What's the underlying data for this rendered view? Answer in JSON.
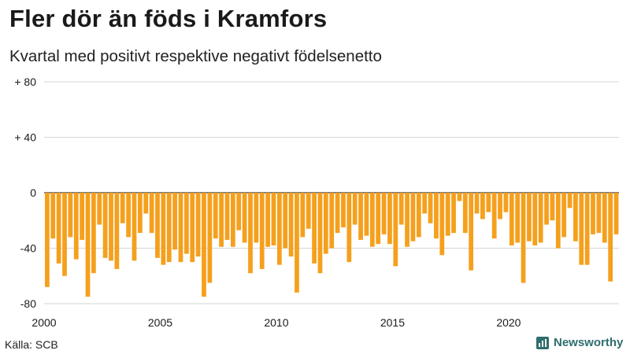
{
  "chart_data": {
    "type": "bar",
    "title": "Fler dör än föds i Kramfors",
    "subtitle": "Kvartal med positivt respektive negativt födelsenetto",
    "source": "Källa: SCB",
    "brand": "Newsworthy",
    "xlabel": "",
    "ylabel": "",
    "ylim": [
      -80,
      80
    ],
    "yticks": [
      80,
      40,
      0,
      -40,
      -80
    ],
    "ytick_labels": [
      "+ 80",
      "+ 40",
      "0",
      "-40",
      "-80"
    ],
    "xticks": [
      2000,
      2005,
      2010,
      2015,
      2020
    ],
    "bar_color": "#f5a01d",
    "start_year": 2000,
    "quarters_per_year": 4,
    "values": [
      -68,
      -33,
      -51,
      -60,
      -32,
      -48,
      -34,
      -75,
      -58,
      -23,
      -47,
      -49,
      -55,
      -22,
      -32,
      -49,
      -29,
      -15,
      -29,
      -47,
      -52,
      -50,
      -41,
      -50,
      -44,
      -50,
      -46,
      -75,
      -65,
      -33,
      -39,
      -34,
      -39,
      -27,
      -36,
      -58,
      -36,
      -55,
      -39,
      -38,
      -52,
      -40,
      -46,
      -72,
      -32,
      -26,
      -51,
      -58,
      -44,
      -40,
      -29,
      -25,
      -50,
      -23,
      -34,
      -31,
      -39,
      -37,
      -30,
      -37,
      -53,
      -23,
      -39,
      -35,
      -32,
      -15,
      -22,
      -33,
      -45,
      -31,
      -29,
      -6,
      -29,
      -56,
      -15,
      -19,
      -14,
      -33,
      -19,
      -14,
      -38,
      -36,
      -65,
      -35,
      -38,
      -36,
      -23,
      -20,
      -40,
      -32,
      -11,
      -35,
      -52,
      -52,
      -30,
      -29,
      -36,
      -64,
      -30
    ]
  }
}
